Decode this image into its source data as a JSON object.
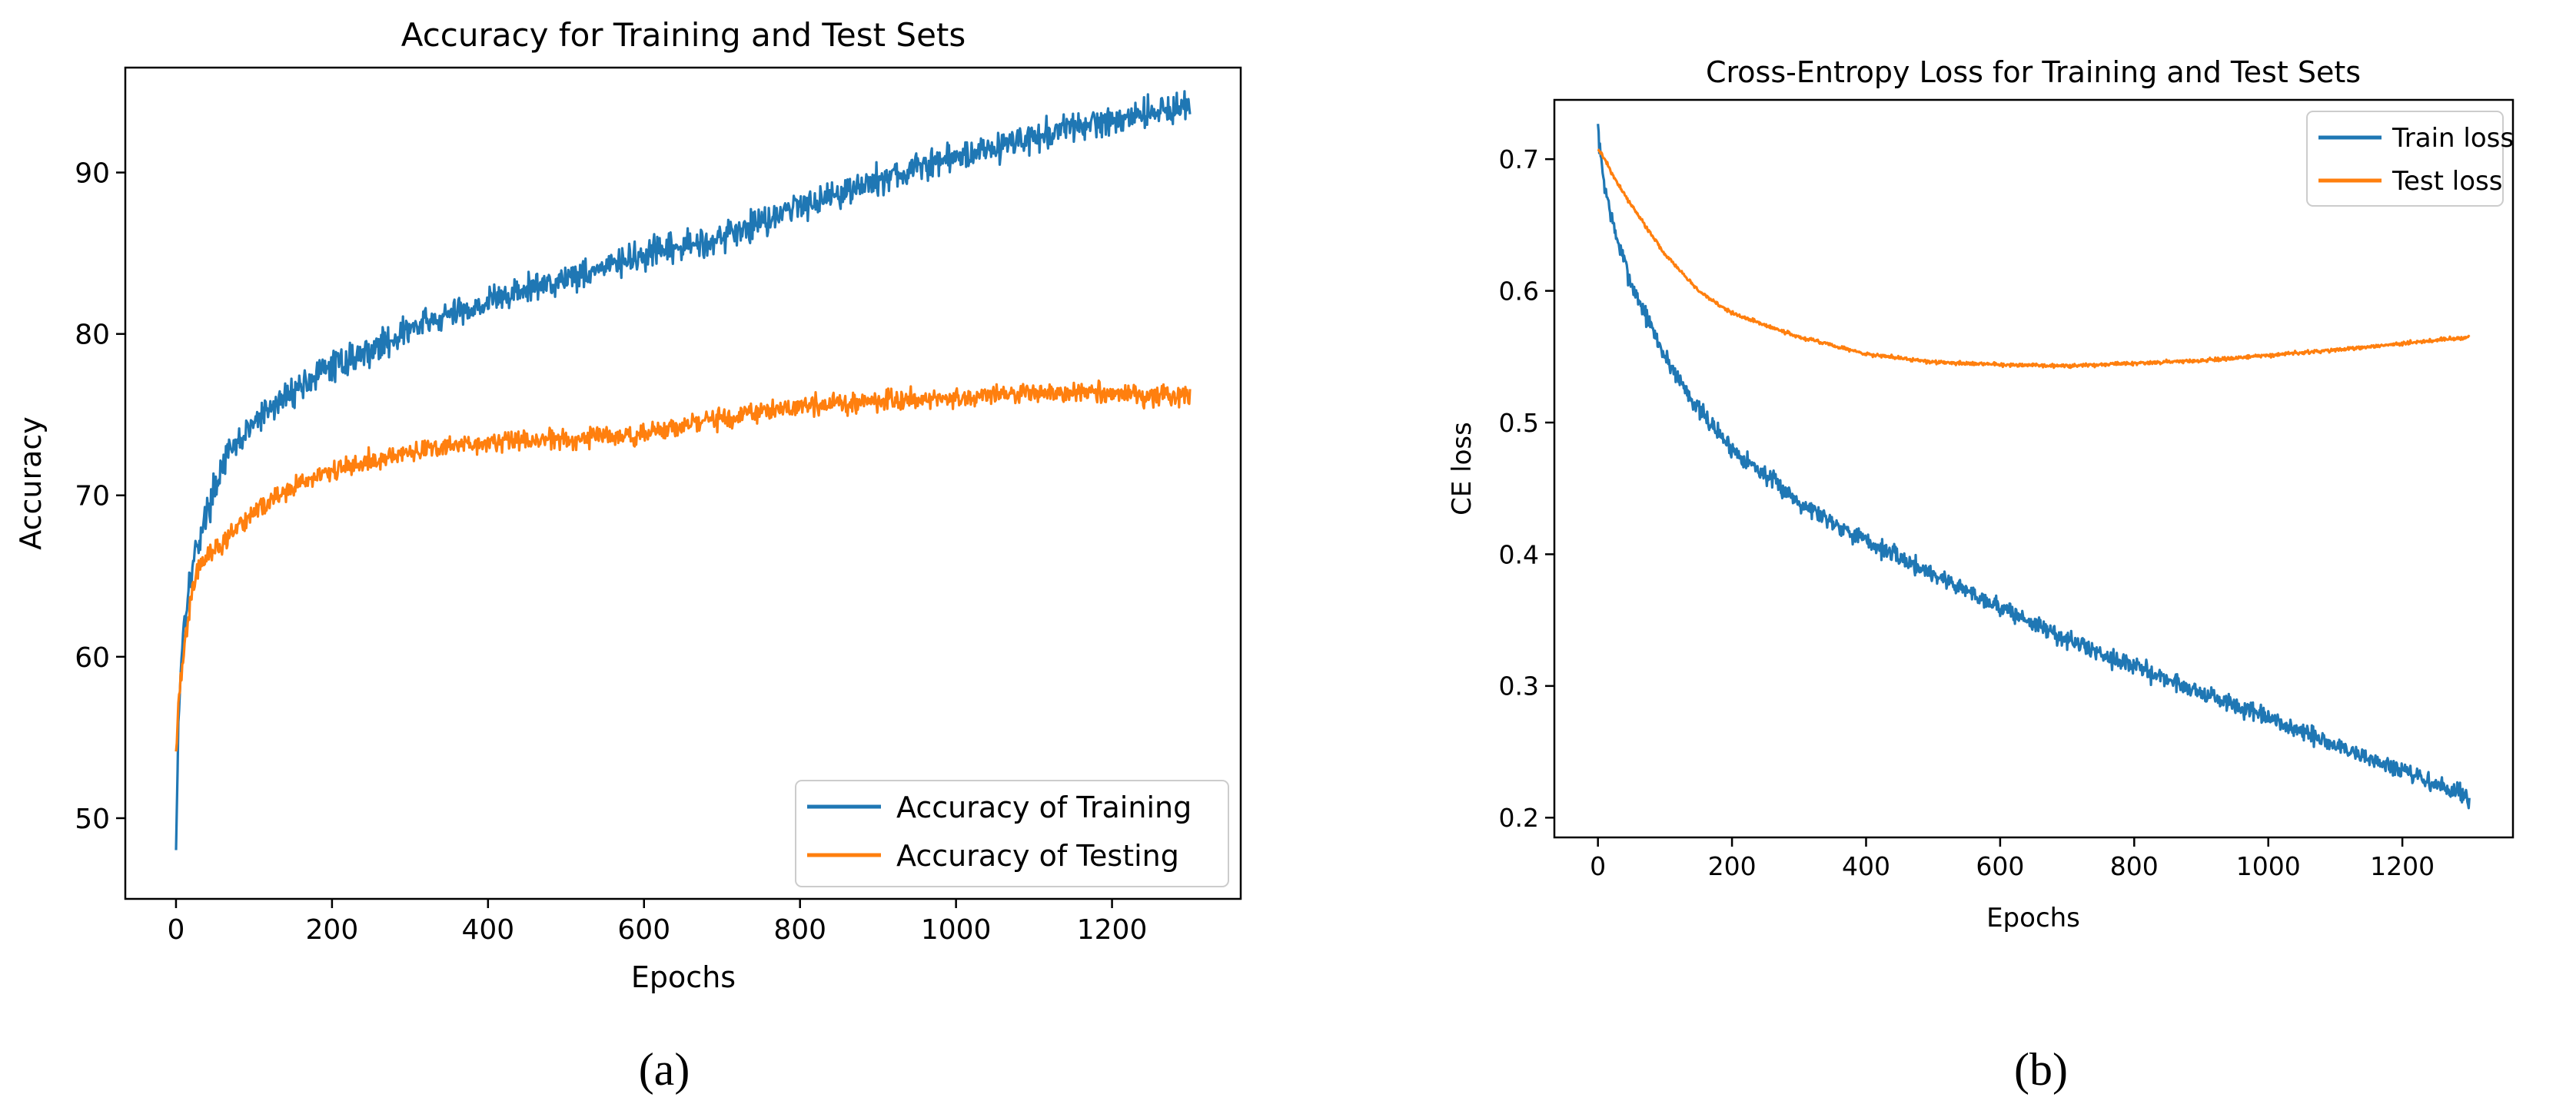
{
  "colors": {
    "train": "#1f77b4",
    "test": "#ff7f0e",
    "axis": "#000000",
    "background": "#ffffff",
    "legend_border": "#cccccc"
  },
  "panels": {
    "a": {
      "label": "(a)"
    },
    "b": {
      "label": "(b)"
    }
  },
  "chart_data": [
    {
      "type": "line",
      "title": "Accuracy for Training and Test Sets",
      "xlabel": "Epochs",
      "ylabel": "Accuracy",
      "xlim": [
        -65,
        1365
      ],
      "ylim": [
        45,
        96.5
      ],
      "xticks": [
        0,
        200,
        400,
        600,
        800,
        1000,
        1200
      ],
      "yticks": [
        50,
        60,
        70,
        80,
        90
      ],
      "grid": false,
      "legend_position": "lower-right",
      "series": [
        {
          "name": "Accuracy of Training",
          "color": "#1f77b4",
          "anchors": [
            [
              0,
              48
            ],
            [
              3,
              56
            ],
            [
              8,
              61
            ],
            [
              15,
              64
            ],
            [
              25,
              66.5
            ],
            [
              40,
              69
            ],
            [
              60,
              72
            ],
            [
              100,
              74.5
            ],
            [
              150,
              76.5
            ],
            [
              200,
              78
            ],
            [
              250,
              79
            ],
            [
              300,
              80.3
            ],
            [
              400,
              82
            ],
            [
              500,
              83.5
            ],
            [
              600,
              84.8
            ],
            [
              700,
              86
            ],
            [
              800,
              88
            ],
            [
              900,
              89.5
            ],
            [
              1000,
              91
            ],
            [
              1100,
              92.2
            ],
            [
              1200,
              93.3
            ],
            [
              1300,
              94.2
            ]
          ],
          "noise": 0.8,
          "seed": 17
        },
        {
          "name": "Accuracy of Testing",
          "color": "#ff7f0e",
          "anchors": [
            [
              0,
              54.5
            ],
            [
              5,
              58
            ],
            [
              12,
              61
            ],
            [
              20,
              64
            ],
            [
              30,
              65.7
            ],
            [
              60,
              67
            ],
            [
              100,
              69
            ],
            [
              150,
              70.5
            ],
            [
              200,
              71.5
            ],
            [
              300,
              72.7
            ],
            [
              400,
              73.3
            ],
            [
              500,
              73.5
            ],
            [
              600,
              73.8
            ],
            [
              700,
              74.8
            ],
            [
              800,
              75.5
            ],
            [
              900,
              75.9
            ],
            [
              1000,
              76.1
            ],
            [
              1100,
              76.3
            ],
            [
              1200,
              76.3
            ],
            [
              1300,
              76.1
            ]
          ],
          "noise": 0.55,
          "seed": 42
        }
      ]
    },
    {
      "type": "line",
      "title": "Cross-Entropy Loss for Training and Test Sets",
      "xlabel": "Epochs",
      "ylabel": "CE loss",
      "xlim": [
        -65,
        1365
      ],
      "ylim": [
        0.185,
        0.745
      ],
      "xticks": [
        0,
        200,
        400,
        600,
        800,
        1000,
        1200
      ],
      "yticks": [
        0.2,
        0.3,
        0.4,
        0.5,
        0.6,
        0.7
      ],
      "ytick_labels": [
        "0.2",
        "0.3",
        "0.4",
        "0.5",
        "0.6",
        "0.7"
      ],
      "grid": false,
      "legend_position": "top-right",
      "series": [
        {
          "name": "Train loss",
          "color": "#1f77b4",
          "anchors": [
            [
              0,
              0.725
            ],
            [
              3,
              0.705
            ],
            [
              10,
              0.68
            ],
            [
              25,
              0.645
            ],
            [
              50,
              0.605
            ],
            [
              100,
              0.55
            ],
            [
              150,
              0.51
            ],
            [
              200,
              0.48
            ],
            [
              300,
              0.44
            ],
            [
              400,
              0.41
            ],
            [
              500,
              0.385
            ],
            [
              600,
              0.36
            ],
            [
              700,
              0.335
            ],
            [
              800,
              0.315
            ],
            [
              900,
              0.295
            ],
            [
              1000,
              0.275
            ],
            [
              1100,
              0.255
            ],
            [
              1200,
              0.235
            ],
            [
              1300,
              0.215
            ]
          ],
          "noise": 0.006,
          "seed": 7
        },
        {
          "name": "Test loss",
          "color": "#ff7f0e",
          "anchors": [
            [
              0,
              0.708
            ],
            [
              10,
              0.7
            ],
            [
              25,
              0.685
            ],
            [
              50,
              0.665
            ],
            [
              100,
              0.628
            ],
            [
              150,
              0.6
            ],
            [
              200,
              0.583
            ],
            [
              300,
              0.565
            ],
            [
              400,
              0.552
            ],
            [
              500,
              0.546
            ],
            [
              600,
              0.544
            ],
            [
              700,
              0.543
            ],
            [
              800,
              0.545
            ],
            [
              900,
              0.547
            ],
            [
              1000,
              0.551
            ],
            [
              1100,
              0.555
            ],
            [
              1200,
              0.56
            ],
            [
              1300,
              0.565
            ]
          ],
          "noise": 0.0012,
          "seed": 99
        }
      ]
    }
  ]
}
